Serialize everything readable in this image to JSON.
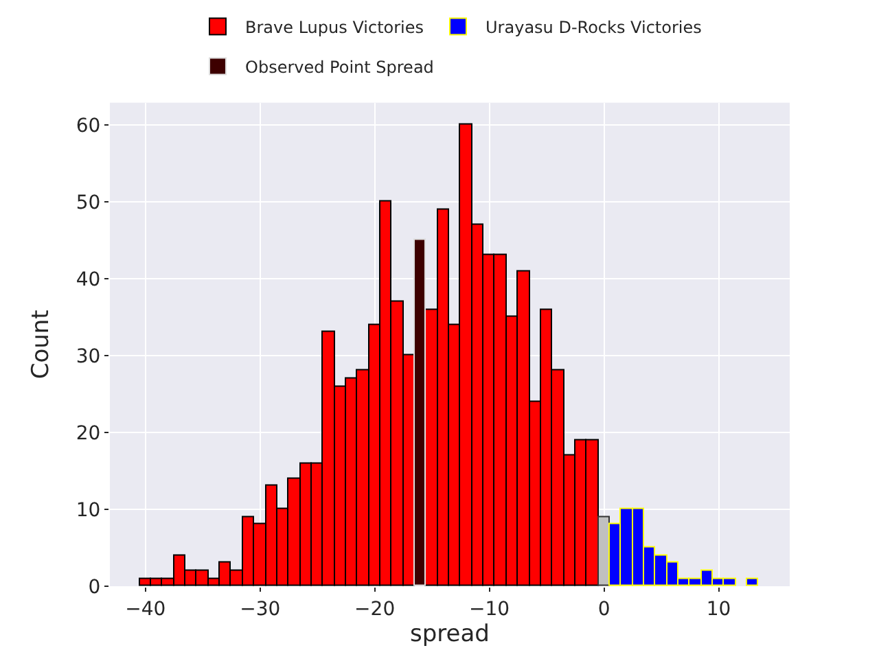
{
  "chart_data": {
    "type": "histogram",
    "xlabel": "spread",
    "ylabel": "Count",
    "bins": [
      -40.5,
      -39.5,
      -38.5,
      -37.5,
      -36.5,
      -35.5,
      -34.5,
      -33.5,
      -32.5,
      -31.5,
      -30.5,
      -29.5,
      -28.5,
      -27.5,
      -26.5,
      -25.5,
      -24.5,
      -23.5,
      -22.5,
      -21.5,
      -20.5,
      -19.5,
      -18.5,
      -17.5,
      -16.5,
      -15.5,
      -14.5,
      -13.5,
      -12.5,
      -11.5,
      -10.5,
      -9.5,
      -8.5,
      -7.5,
      -6.5,
      -5.5,
      -4.5,
      -3.5,
      -2.5,
      -1.5,
      -0.5,
      0.5,
      1.5,
      2.5,
      3.5,
      4.5,
      5.5,
      6.5,
      7.5,
      8.5,
      9.5,
      10.5,
      11.5,
      12.5,
      13.5
    ],
    "series": [
      {
        "name": "Brave Lupus Victories",
        "color": "#ff0000",
        "values": [
          1,
          1,
          1,
          4,
          2,
          2,
          1,
          3,
          2,
          9,
          8,
          13,
          10,
          14,
          16,
          16,
          33,
          26,
          27,
          28,
          34,
          50,
          37,
          30,
          null,
          36,
          49,
          34,
          60,
          47,
          43,
          43,
          35,
          41,
          24,
          36,
          28,
          17,
          19,
          19,
          null,
          null,
          null,
          null,
          null,
          null,
          null,
          null,
          null,
          null,
          null,
          null,
          null,
          null
        ]
      },
      {
        "color": "#c0c0c0",
        "values": [
          null,
          null,
          null,
          null,
          null,
          null,
          null,
          null,
          null,
          null,
          null,
          null,
          null,
          null,
          null,
          null,
          null,
          null,
          null,
          null,
          null,
          null,
          null,
          null,
          null,
          null,
          null,
          null,
          null,
          null,
          null,
          null,
          null,
          null,
          null,
          null,
          null,
          null,
          null,
          null,
          9,
          null,
          null,
          null,
          null,
          null,
          null,
          null,
          null,
          null,
          null,
          null,
          null,
          null
        ]
      },
      {
        "name": "Urayasu D-Rocks Victories",
        "color": "#0000ff",
        "values": [
          null,
          null,
          null,
          null,
          null,
          null,
          null,
          null,
          null,
          null,
          null,
          null,
          null,
          null,
          null,
          null,
          null,
          null,
          null,
          null,
          null,
          null,
          null,
          null,
          null,
          null,
          null,
          null,
          null,
          null,
          null,
          null,
          null,
          null,
          null,
          null,
          null,
          null,
          null,
          null,
          null,
          8,
          10,
          10,
          5,
          4,
          3,
          1,
          1,
          2,
          1,
          1,
          null,
          1
        ]
      },
      {
        "name": "Observed Point Spread",
        "color": "#3d0000",
        "values": [
          null,
          null,
          null,
          null,
          null,
          null,
          null,
          null,
          null,
          null,
          null,
          null,
          null,
          null,
          null,
          null,
          null,
          null,
          null,
          null,
          null,
          null,
          null,
          null,
          45,
          null,
          null,
          null,
          null,
          null,
          null,
          null,
          null,
          null,
          null,
          null,
          null,
          null,
          null,
          null,
          null,
          null,
          null,
          null,
          null,
          null,
          null,
          null,
          null,
          null,
          null,
          null,
          null,
          null
        ]
      }
    ],
    "xlim": [
      -43.1,
      16.2
    ],
    "xticks": [
      -40,
      -30,
      -20,
      -10,
      0,
      10
    ],
    "ylim": [
      0,
      62.9
    ],
    "yticks": [
      0,
      10,
      20,
      30,
      40,
      50,
      60
    ],
    "grid": true,
    "legend": "top"
  }
}
